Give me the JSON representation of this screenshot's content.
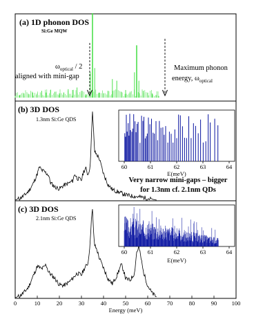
{
  "chart_data": [
    {
      "type": "line",
      "panel": "(a)",
      "title": "1D phonon DOS",
      "subtitle": "Si:Ge MQW",
      "annotations": [
        {
          "text_main": "ω",
          "text_sub": "optical",
          "text_tail": " / 2",
          "line2": "aligned with mini-gap",
          "arrow_x_meV": 32.5
        },
        {
          "line1": "Maximum phonon",
          "line2_prefix": "energy, ω",
          "line2_sub": "optical",
          "arrow_x_meV": 65
        }
      ],
      "series": [
        {
          "color": "#4ce04c",
          "x": [
            0,
            2,
            4,
            6,
            8,
            10,
            12,
            14,
            16,
            18,
            20,
            22,
            24,
            26,
            28,
            30,
            32,
            34,
            35,
            36,
            38,
            40,
            42,
            44,
            46,
            48,
            50,
            52,
            54,
            55,
            56,
            58,
            60,
            62,
            64,
            65
          ],
          "y": [
            0.02,
            0.03,
            0.05,
            0.04,
            0.06,
            0.05,
            0.08,
            0.06,
            0.09,
            0.07,
            0.05,
            0.06,
            0.1,
            0.09,
            0.12,
            0.08,
            0.04,
            0.3,
            1.0,
            0.35,
            0.06,
            0.05,
            0.08,
            0.22,
            0.2,
            0.07,
            0.09,
            0.06,
            0.3,
            0.62,
            0.2,
            0.08,
            0.06,
            0.05,
            0.03,
            0.02
          ]
        }
      ]
    },
    {
      "type": "line",
      "panel": "(b)",
      "title": "3D DOS",
      "subtitle": "1.3nm Si:Ge QDS",
      "xlim": [
        0,
        100
      ],
      "series": [
        {
          "color": "#000000",
          "x": [
            0,
            2,
            4,
            6,
            8,
            10,
            11,
            12,
            13,
            14,
            15,
            16,
            18,
            20,
            22,
            24,
            26,
            27,
            28,
            30,
            31,
            32,
            33,
            34,
            34.5,
            35,
            35.5,
            36,
            37,
            38,
            40,
            42,
            44,
            46,
            48,
            50,
            52,
            55,
            58,
            60,
            62,
            64
          ],
          "y": [
            0.0,
            0.02,
            0.05,
            0.1,
            0.18,
            0.3,
            0.38,
            0.34,
            0.33,
            0.31,
            0.29,
            0.2,
            0.15,
            0.13,
            0.17,
            0.19,
            0.22,
            0.3,
            0.25,
            0.23,
            0.33,
            0.36,
            0.29,
            0.4,
            0.75,
            1.0,
            0.78,
            0.55,
            0.52,
            0.48,
            0.3,
            0.18,
            0.12,
            0.1,
            0.08,
            0.06,
            0.05,
            0.04,
            0.03,
            0.02,
            0.01,
            0.0
          ]
        }
      ],
      "inset": {
        "xlim": [
          60,
          64
        ],
        "xticks": [
          60,
          61,
          62,
          63,
          64
        ],
        "xlabel": "E(meV)",
        "lines_x": [
          60.02,
          60.05,
          60.08,
          60.11,
          60.15,
          60.18,
          60.21,
          60.24,
          60.29,
          60.33,
          60.36,
          60.41,
          60.45,
          60.49,
          60.53,
          60.6,
          60.66,
          60.71,
          60.75,
          60.8,
          60.84,
          60.88,
          60.92,
          60.98,
          61.04,
          61.1,
          61.15,
          61.21,
          61.27,
          61.34,
          61.4,
          61.47,
          61.52,
          61.58,
          61.66,
          61.72,
          61.79,
          61.86,
          61.93,
          62.0,
          62.07,
          62.14,
          62.22,
          62.3,
          62.38,
          62.46,
          62.55,
          62.64,
          62.72,
          62.82,
          62.91,
          63.01,
          63.11,
          63.2,
          63.28,
          63.45,
          63.57
        ]
      }
    },
    {
      "type": "line",
      "panel": "(c)",
      "title": "3D DOS",
      "subtitle": "2.1nm Si:Ge QDS",
      "xlabel": "Energy (meV)",
      "xlim": [
        0,
        100
      ],
      "xticks": [
        0,
        10,
        20,
        30,
        40,
        50,
        60,
        70,
        80,
        90,
        100
      ],
      "series": [
        {
          "color": "#000000",
          "x": [
            0,
            2,
            4,
            6,
            8,
            10,
            12,
            13,
            14,
            15,
            16,
            18,
            20,
            22,
            24,
            26,
            28,
            30,
            31,
            32,
            33,
            34,
            34.5,
            35,
            35.5,
            36,
            37,
            38,
            40,
            42,
            44,
            46,
            48,
            49,
            50,
            52,
            54,
            55,
            56,
            57,
            58,
            60,
            62,
            64
          ],
          "y": [
            0.0,
            0.02,
            0.06,
            0.12,
            0.24,
            0.36,
            0.33,
            0.35,
            0.38,
            0.3,
            0.27,
            0.22,
            0.15,
            0.14,
            0.17,
            0.22,
            0.28,
            0.26,
            0.32,
            0.36,
            0.4,
            0.65,
            0.92,
            1.0,
            0.74,
            0.6,
            0.55,
            0.46,
            0.34,
            0.22,
            0.16,
            0.25,
            0.38,
            0.32,
            0.22,
            0.2,
            0.28,
            0.52,
            0.58,
            0.45,
            0.3,
            0.14,
            0.05,
            0.01
          ]
        }
      ],
      "inset": {
        "xlim": [
          60,
          64
        ],
        "xticks": [
          60,
          61,
          62,
          63,
          64
        ],
        "xlabel": "E(meV)"
      }
    }
  ],
  "callout": {
    "line1": "Very narrow mini-gaps – bigger",
    "line2": "for 1.3nm cf. 2.1nm QDs"
  },
  "colors": {
    "panel_a_line": "#4ce04c",
    "inset_line": "#0a14a0",
    "dos_line": "#000000"
  }
}
